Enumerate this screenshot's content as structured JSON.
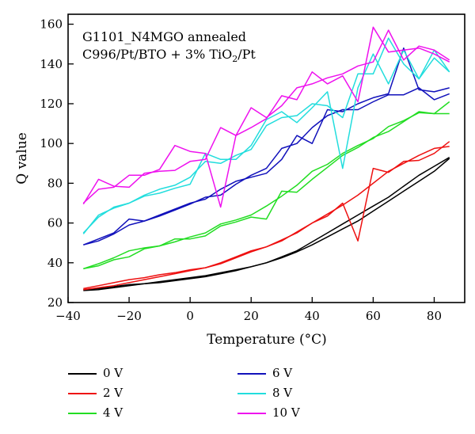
{
  "chart_data": {
    "type": "line",
    "title_lines": [
      "G1101_N4MGO annealed",
      "C996/Pt/BTO + 3% TiO"
    ],
    "title_sub": "2",
    "title_tail": "/Pt",
    "xlabel": "Temperature (°C)",
    "ylabel": "Q value",
    "xlim": [
      -40,
      90
    ],
    "ylim": [
      20,
      165
    ],
    "xticks": [
      -40,
      -20,
      0,
      20,
      40,
      60,
      80
    ],
    "xtick_labels": [
      "−40",
      "−20",
      "0",
      "20",
      "40",
      "60",
      "80"
    ],
    "yticks": [
      20,
      40,
      60,
      80,
      100,
      120,
      140,
      160
    ],
    "grid": false,
    "legend_position": "below",
    "series": [
      {
        "name": "0 V",
        "color": "#000000",
        "x": [
          -35,
          -30,
          -25,
          -20,
          -15,
          -10,
          -5,
          0,
          5,
          10,
          15,
          20,
          25,
          30,
          35,
          40,
          45,
          50,
          55,
          60,
          65,
          70,
          75,
          80,
          85
        ],
        "curves": [
          [
            26.5,
            27,
            28,
            29,
            29.5,
            30.5,
            31.5,
            32.5,
            33.5,
            35,
            36.5,
            38,
            40,
            42.5,
            45.5,
            49,
            53,
            57,
            61,
            66,
            71,
            76,
            81,
            86,
            92.5
          ],
          [
            26,
            26.5,
            27.5,
            28.5,
            29.5,
            30,
            31,
            32,
            33,
            34.5,
            36,
            38,
            40,
            43,
            46,
            50.5,
            55,
            59.5,
            64,
            68.5,
            73,
            78.5,
            84,
            88.5,
            93
          ]
        ]
      },
      {
        "name": "2 V",
        "color": "#ee1111",
        "x": [
          -35,
          -30,
          -25,
          -20,
          -15,
          -10,
          -5,
          0,
          5,
          10,
          15,
          20,
          25,
          30,
          35,
          40,
          45,
          50,
          55,
          60,
          65,
          70,
          75,
          80,
          85
        ],
        "curves": [
          [
            27,
            28.5,
            30,
            31.5,
            32.5,
            34,
            35,
            36.5,
            37.5,
            39.5,
            42.5,
            45.5,
            48,
            51.5,
            55,
            60,
            63.5,
            70,
            51,
            87.5,
            85.5,
            91,
            91.5,
            95,
            101
          ],
          [
            26.5,
            27.5,
            28.5,
            30,
            31.5,
            33,
            34.5,
            36,
            37.5,
            40,
            43,
            46,
            48,
            51,
            55.5,
            60,
            64.5,
            69,
            74,
            80,
            86,
            90,
            94,
            97.5,
            98.5
          ]
        ]
      },
      {
        "name": "4 V",
        "color": "#22dd22",
        "x": [
          -35,
          -30,
          -25,
          -20,
          -15,
          -10,
          -5,
          0,
          5,
          10,
          15,
          20,
          25,
          30,
          35,
          40,
          45,
          50,
          55,
          60,
          65,
          70,
          75,
          80,
          85
        ],
        "curves": [
          [
            37,
            39.5,
            42.5,
            46,
            47.5,
            48.5,
            50.5,
            53,
            55,
            59.5,
            61.5,
            64,
            68.5,
            73.5,
            79,
            86,
            89.5,
            95,
            99,
            102.5,
            108.5,
            111.5,
            115.5,
            115,
            115
          ],
          [
            37,
            38.5,
            41.5,
            43,
            47,
            48.5,
            52,
            52,
            53.5,
            58.5,
            60.5,
            63,
            62,
            76,
            75.5,
            82,
            88,
            94,
            98,
            103,
            106,
            111,
            116,
            115,
            121
          ]
        ]
      },
      {
        "name": "6 V",
        "color": "#1111bb",
        "x": [
          -35,
          -30,
          -25,
          -20,
          -15,
          -10,
          -5,
          0,
          5,
          10,
          15,
          20,
          25,
          30,
          35,
          40,
          45,
          50,
          55,
          60,
          65,
          70,
          75,
          80,
          85
        ],
        "curves": [
          [
            49,
            51,
            54.5,
            59,
            61,
            63.5,
            66.5,
            69.5,
            73,
            74,
            79.5,
            84,
            87.5,
            97.5,
            100,
            108,
            114,
            117,
            117,
            121,
            124.5,
            124.5,
            128,
            122,
            125
          ],
          [
            49,
            52,
            55,
            62,
            61,
            64,
            67,
            70,
            72,
            77,
            81,
            83,
            85,
            92,
            104,
            100,
            117,
            116,
            120,
            123,
            125,
            148,
            127,
            126,
            128
          ]
        ]
      },
      {
        "name": "8 V",
        "color": "#22dddd",
        "x": [
          -35,
          -30,
          -25,
          -20,
          -15,
          -10,
          -5,
          0,
          5,
          10,
          15,
          20,
          25,
          30,
          35,
          40,
          45,
          50,
          55,
          60,
          65,
          70,
          75,
          80,
          85
        ],
        "curves": [
          [
            54.5,
            64,
            67.5,
            70,
            73.5,
            75,
            77.5,
            79.5,
            95,
            92,
            92,
            99,
            112,
            116,
            110.5,
            118,
            126,
            87.5,
            128,
            145,
            130,
            147,
            132.5,
            147,
            136
          ],
          [
            55,
            63,
            68,
            70,
            74,
            77,
            79,
            83,
            91,
            90,
            94,
            97,
            109,
            113,
            114,
            120,
            119,
            113,
            135,
            135,
            153,
            140,
            132.5,
            143,
            136
          ]
        ]
      },
      {
        "name": "10 V",
        "color": "#ee11ee",
        "x": [
          -35,
          -30,
          -25,
          -20,
          -15,
          -10,
          -5,
          0,
          5,
          10,
          15,
          20,
          25,
          30,
          35,
          40,
          45,
          50,
          55,
          60,
          65,
          70,
          75,
          80,
          85
        ],
        "curves": [
          [
            69.5,
            82,
            78.5,
            78,
            85,
            86,
            86.5,
            91,
            92,
            108,
            104,
            108,
            112.5,
            124,
            122,
            136,
            130,
            134,
            121,
            158.5,
            146,
            147,
            148,
            145,
            141
          ],
          [
            70,
            77,
            78,
            84,
            84,
            87,
            99,
            96,
            95,
            68,
            104,
            118,
            113,
            119,
            128,
            130,
            133,
            135,
            139,
            141,
            157,
            142,
            149,
            147,
            142
          ]
        ]
      }
    ]
  }
}
